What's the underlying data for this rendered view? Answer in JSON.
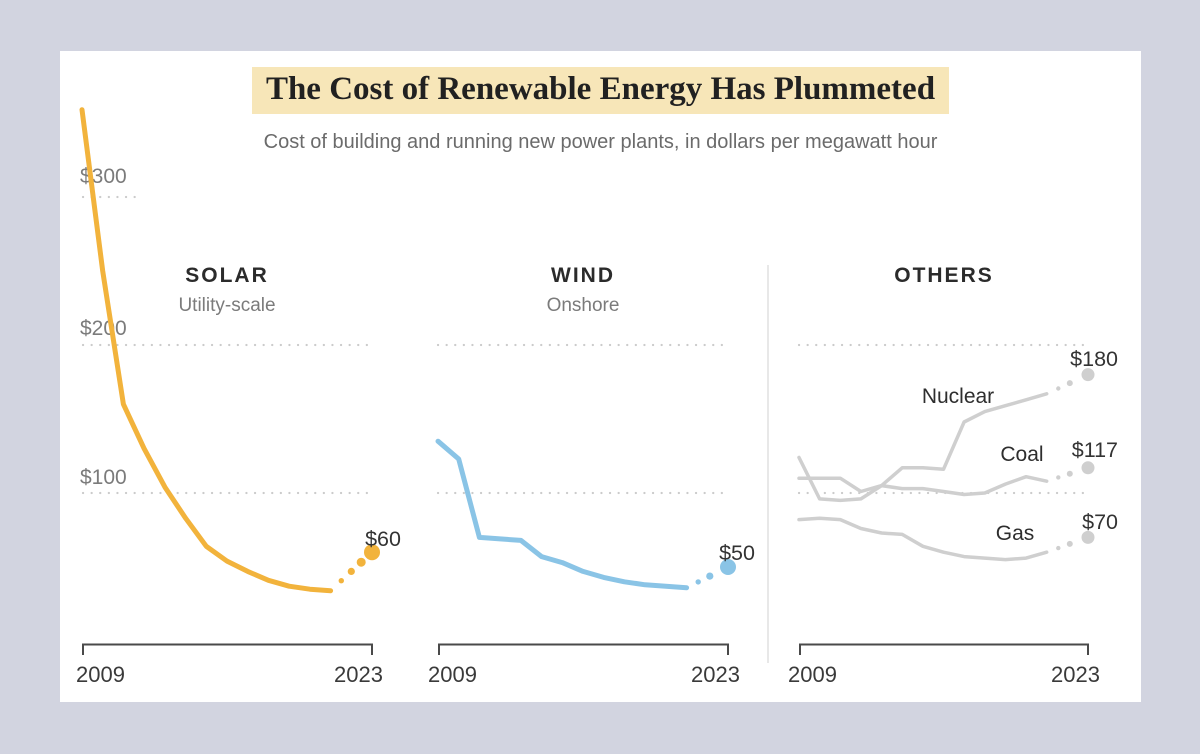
{
  "page": {
    "title": "The Cost of Renewable Energy Has Plummeted",
    "subtitle": "Cost of building and running new power plants, in dollars per megawatt hour",
    "background_color": "#d2d4e0",
    "card_color": "#ffffff",
    "title_highlight_color": "#f7e6b8"
  },
  "y_axis": {
    "labels": [
      "$300",
      "$200",
      "$100"
    ],
    "values": [
      300,
      200,
      100
    ]
  },
  "chart_data": {
    "type": "line",
    "title": "The Cost of Renewable Energy Has Plummeted",
    "subtitle": "Cost of building and running new power plants, in dollars per megawatt hour",
    "unit": "dollars per megawatt hour",
    "ylim": [
      0,
      380
    ],
    "gridline_values": [
      300,
      200,
      100
    ],
    "grid": "dotted",
    "x_axis": {
      "start_label": "2009",
      "end_label": "2023",
      "start_year": 2009,
      "end_year": 2023
    },
    "years_solid": [
      2009,
      2010,
      2011,
      2012,
      2013,
      2014,
      2015,
      2016,
      2017,
      2018,
      2019,
      2020,
      2021
    ],
    "panels": [
      {
        "title": "SOLAR",
        "subtitle": "Utility-scale",
        "series": [
          {
            "name": "Solar",
            "color": "#f2b33c",
            "show_name_label": false,
            "values": [
              359,
              250,
              160,
              130,
              104,
              83,
              64,
              54,
              47,
              41,
              37,
              35,
              34
            ],
            "projection": {
              "year": 2023,
              "value": 60,
              "label": "$60"
            }
          }
        ]
      },
      {
        "title": "WIND",
        "subtitle": "Onshore",
        "series": [
          {
            "name": "Wind",
            "color": "#8ac4e6",
            "show_name_label": false,
            "values": [
              135,
              123,
              70,
              69,
              68,
              57,
              53,
              47,
              43,
              40,
              38,
              37,
              36
            ],
            "projection": {
              "year": 2023,
              "value": 50,
              "label": "$50"
            }
          }
        ]
      },
      {
        "title": "OTHERS",
        "subtitle": "",
        "series": [
          {
            "name": "Nuclear",
            "color": "#cfcfcf",
            "show_name_label": true,
            "values": [
              124,
              96,
              95,
              96,
              105,
              117,
              117,
              116,
              148,
              155,
              159,
              163,
              167
            ],
            "projection": {
              "year": 2023,
              "value": 180,
              "label": "$180"
            }
          },
          {
            "name": "Coal",
            "color": "#cfcfcf",
            "show_name_label": true,
            "values": [
              110,
              110,
              110,
              101,
              105,
              103,
              103,
              101,
              99,
              100,
              106,
              111,
              108
            ],
            "projection": {
              "year": 2023,
              "value": 117,
              "label": "$117"
            }
          },
          {
            "name": "Gas",
            "color": "#cfcfcf",
            "show_name_label": true,
            "values": [
              82,
              83,
              82,
              76,
              73,
              72,
              64,
              60,
              57,
              56,
              55,
              56,
              60
            ],
            "projection": {
              "year": 2023,
              "value": 70,
              "label": "$70"
            }
          }
        ]
      }
    ]
  }
}
